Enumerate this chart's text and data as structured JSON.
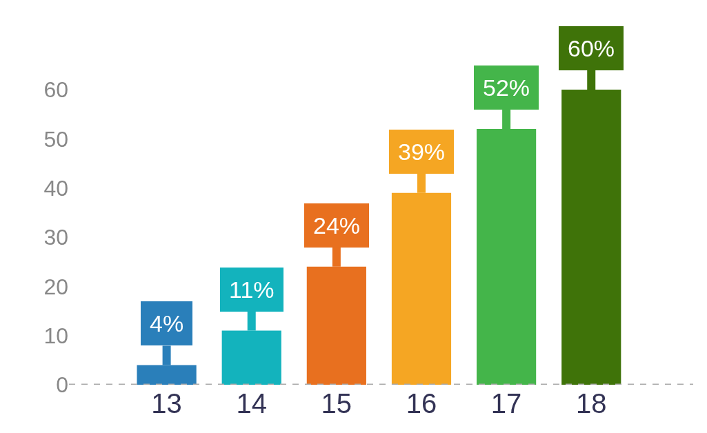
{
  "chart_data": {
    "type": "bar",
    "categories": [
      "13",
      "14",
      "15",
      "16",
      "17",
      "18"
    ],
    "values": [
      4,
      11,
      24,
      39,
      52,
      60
    ],
    "colors": [
      "#2a7fba",
      "#13b3bd",
      "#e8701f",
      "#f5a623",
      "#44b54a",
      "#3f7309"
    ],
    "value_labels": [
      "4%",
      "11%",
      "24%",
      "39%",
      "52%",
      "60%"
    ],
    "ylim": [
      0,
      60
    ],
    "yticks": [
      0,
      10,
      20,
      30,
      40,
      50,
      60
    ],
    "ref_lines": [
      {
        "axis": "y",
        "value": 0,
        "color": "#aaaaaa",
        "line_style": "dashed"
      }
    ]
  }
}
